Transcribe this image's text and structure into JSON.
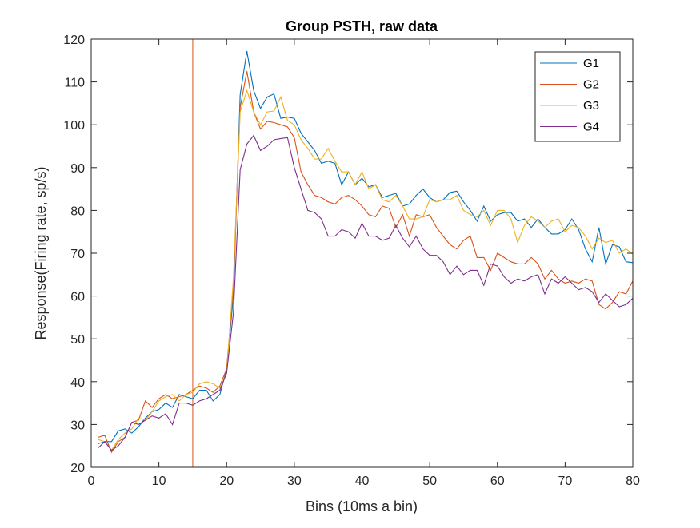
{
  "chart_data": {
    "type": "line",
    "title": "Group PSTH, raw data",
    "xlabel": "Bins (10ms a bin)",
    "ylabel": "Response(Firing rate, sp/s)",
    "xlim": [
      0,
      80
    ],
    "ylim": [
      20,
      120
    ],
    "xticks": [
      0,
      10,
      20,
      30,
      40,
      50,
      60,
      70,
      80
    ],
    "yticks": [
      20,
      30,
      40,
      50,
      60,
      70,
      80,
      90,
      100,
      110,
      120
    ],
    "grid": false,
    "legend_position": "top-right",
    "stimulus_onset_line": {
      "x": 15,
      "color": "#D95319"
    },
    "x": [
      1,
      2,
      3,
      4,
      5,
      6,
      7,
      8,
      9,
      10,
      11,
      12,
      13,
      14,
      15,
      16,
      17,
      18,
      19,
      20,
      21,
      22,
      23,
      24,
      25,
      26,
      27,
      28,
      29,
      30,
      31,
      32,
      33,
      34,
      35,
      36,
      37,
      38,
      39,
      40,
      41,
      42,
      43,
      44,
      45,
      46,
      47,
      48,
      49,
      50,
      51,
      52,
      53,
      54,
      55,
      56,
      57,
      58,
      59,
      60,
      61,
      62,
      63,
      64,
      65,
      66,
      67,
      68,
      69,
      70,
      71,
      72,
      73,
      74,
      75,
      76,
      77,
      78,
      79,
      80
    ],
    "series": [
      {
        "name": "G1",
        "color": "#0072BD",
        "values": [
          25.5,
          26.0,
          26.0,
          28.5,
          29.0,
          28.0,
          29.5,
          31.5,
          33.0,
          33.5,
          35.0,
          34.0,
          37.0,
          36.5,
          36.0,
          38.0,
          38.0,
          35.5,
          37.0,
          43.0,
          60.0,
          107.0,
          117.2,
          108.0,
          103.8,
          106.5,
          107.2,
          101.5,
          101.8,
          101.5,
          98.0,
          96.0,
          94.0,
          91.0,
          91.5,
          91.0,
          86.0,
          89.0,
          86.0,
          87.5,
          85.5,
          86.0,
          83.0,
          83.5,
          84.0,
          81.0,
          81.5,
          83.5,
          85.0,
          83.0,
          82.0,
          82.5,
          84.2,
          84.5,
          82.0,
          80.0,
          77.5,
          81.0,
          77.5,
          79.0,
          79.5,
          79.5,
          77.5,
          78.0,
          76.0,
          78.0,
          76.0,
          74.5,
          74.5,
          75.5,
          78.0,
          75.5,
          71.0,
          68.0,
          76.0,
          67.5,
          72.0,
          71.5,
          68.0,
          67.8
        ]
      },
      {
        "name": "G2",
        "color": "#D95319",
        "values": [
          27.0,
          27.5,
          23.5,
          26.0,
          27.0,
          30.5,
          31.0,
          35.5,
          34.0,
          36.0,
          37.0,
          36.0,
          36.5,
          37.0,
          38.0,
          39.0,
          38.5,
          37.5,
          39.0,
          43.0,
          62.0,
          104.0,
          112.5,
          103.0,
          99.0,
          100.8,
          100.5,
          100.0,
          99.5,
          97.0,
          89.0,
          86.0,
          83.5,
          83.0,
          82.0,
          81.5,
          83.0,
          83.5,
          82.5,
          81.0,
          79.0,
          78.5,
          81.0,
          80.5,
          76.0,
          79.0,
          74.0,
          79.0,
          78.5,
          79.0,
          76.0,
          74.0,
          72.0,
          71.0,
          73.0,
          74.0,
          69.0,
          69.0,
          66.0,
          70.0,
          69.0,
          68.0,
          67.5,
          67.5,
          69.0,
          67.5,
          64.0,
          66.0,
          64.0,
          63.0,
          63.5,
          63.0,
          64.0,
          63.5,
          58.0,
          57.0,
          58.5,
          61.0,
          60.5,
          63.5
        ]
      },
      {
        "name": "G3",
        "color": "#EDB120",
        "values": [
          26.5,
          26.0,
          24.0,
          26.5,
          28.0,
          29.0,
          31.5,
          31.0,
          33.0,
          35.5,
          36.5,
          37.0,
          35.5,
          37.0,
          37.5,
          39.5,
          40.0,
          39.5,
          38.5,
          42.0,
          64.0,
          103.0,
          108.0,
          103.0,
          100.0,
          103.0,
          103.2,
          106.5,
          101.0,
          100.0,
          96.5,
          94.5,
          92.0,
          92.0,
          94.5,
          91.5,
          89.0,
          89.0,
          86.0,
          89.0,
          85.0,
          86.0,
          82.5,
          82.0,
          83.5,
          81.0,
          78.0,
          78.0,
          78.5,
          82.5,
          82.0,
          82.5,
          82.5,
          83.5,
          80.0,
          79.0,
          78.5,
          80.0,
          76.5,
          80.0,
          80.0,
          78.0,
          72.5,
          76.5,
          78.5,
          77.5,
          76.0,
          77.5,
          78.0,
          75.0,
          76.5,
          76.0,
          74.0,
          71.0,
          73.5,
          72.5,
          73.0,
          70.0,
          71.0,
          69.8
        ]
      },
      {
        "name": "G4",
        "color": "#7E2F8E",
        "values": [
          24.5,
          26.0,
          24.0,
          25.0,
          27.0,
          30.5,
          30.0,
          31.0,
          32.0,
          31.5,
          32.5,
          30.0,
          35.0,
          35.0,
          34.5,
          35.5,
          36.0,
          37.0,
          38.0,
          42.0,
          56.0,
          89.5,
          95.5,
          97.5,
          94.0,
          95.0,
          96.5,
          96.8,
          97.0,
          90.0,
          85.0,
          80.0,
          79.5,
          78.0,
          74.0,
          74.0,
          75.5,
          75.0,
          73.5,
          77.0,
          74.0,
          74.0,
          73.0,
          73.5,
          76.5,
          73.5,
          71.5,
          74.0,
          71.0,
          69.5,
          69.5,
          68.0,
          65.0,
          67.0,
          65.0,
          66.0,
          66.0,
          62.5,
          67.5,
          67.0,
          64.5,
          63.0,
          64.0,
          63.5,
          64.5,
          65.0,
          60.5,
          64.0,
          63.0,
          64.5,
          63.0,
          61.5,
          62.0,
          61.0,
          58.5,
          60.5,
          59.0,
          57.5,
          58.0,
          59.5
        ]
      }
    ]
  }
}
